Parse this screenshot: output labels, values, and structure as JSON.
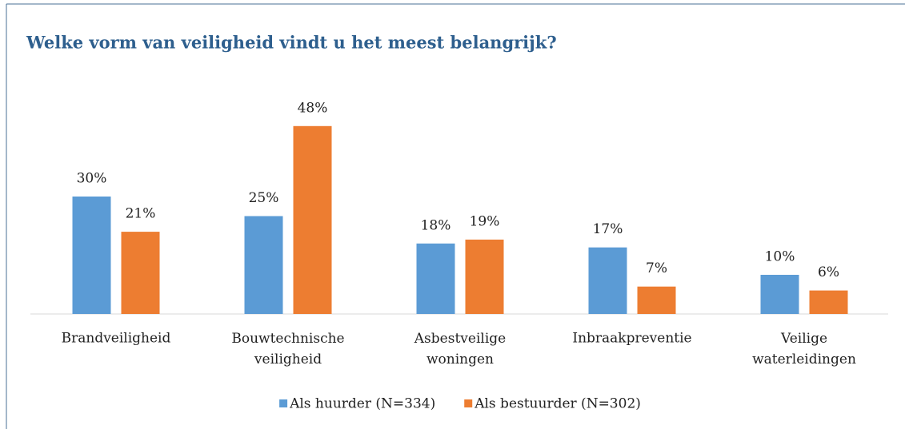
{
  "chart_data": {
    "type": "bar",
    "title": "Welke vorm van veiligheid vindt u het meest belangrijk?",
    "categories": [
      "Brandveiligheid",
      "Bouwtechnische\nveiligheid",
      "Asbestveilige\nwoningen",
      "Inbraakpreventie",
      "Veilige\nwaterleidingen"
    ],
    "series": [
      {
        "name": "Als huurder (N=334)",
        "color": "#5b9bd5",
        "values": [
          30,
          25,
          18,
          17,
          10
        ],
        "value_labels": [
          "30%",
          "25%",
          "18%",
          "17%",
          "10%"
        ]
      },
      {
        "name": "Als bestuurder (N=302)",
        "color": "#ed7d31",
        "values": [
          21,
          48,
          19,
          7,
          6
        ],
        "value_labels": [
          "21%",
          "48%",
          "19%",
          "7%",
          "6%"
        ]
      }
    ],
    "ylim": [
      0,
      50
    ]
  }
}
